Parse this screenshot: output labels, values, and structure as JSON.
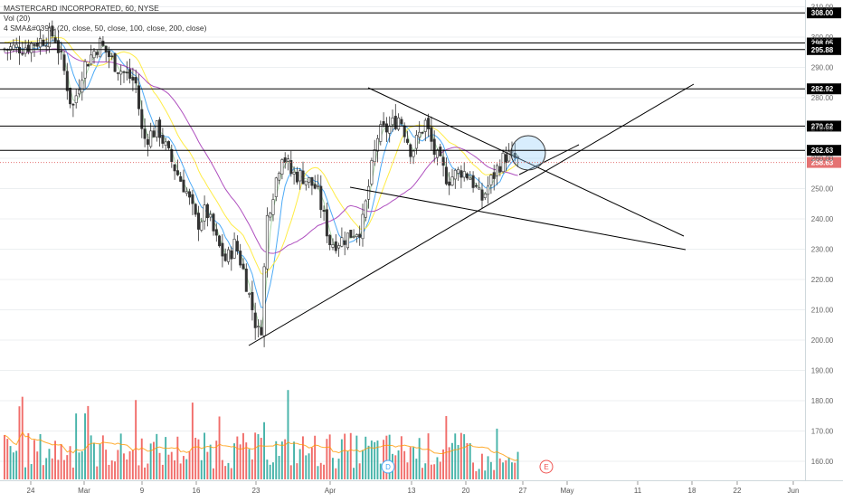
{
  "legend": {
    "line1": "MASTERCARD INCORPORATED, 60, NYSE",
    "line2": "Vol (20)",
    "line3": "4 SMA&#039;s (20, close, 50, close, 100, close, 200, close)"
  },
  "chart_data": {
    "type": "candlestick",
    "title": "MASTERCARD INCORPORATED, 60, NYSE",
    "x_tick_labels": [
      "24",
      "Mar",
      "9",
      "16",
      "23",
      "Apr",
      "13",
      "20",
      "27",
      "May",
      "11",
      "18",
      "22",
      "Jun"
    ],
    "y_tick_labels": [
      160,
      170,
      180,
      190,
      200,
      210,
      220,
      230,
      240,
      250,
      260,
      270,
      280,
      290,
      300,
      310
    ],
    "ylim": [
      155,
      313
    ],
    "grid": true,
    "price_levels": [
      {
        "label": "308.00",
        "value": 308.0
      },
      {
        "label": "298.05",
        "value": 298.05
      },
      {
        "label": "295.88",
        "value": 295.88
      },
      {
        "label": "282.92",
        "value": 282.92
      },
      {
        "label": "270.62",
        "value": 270.62
      },
      {
        "label": "262.63",
        "value": 262.63
      },
      {
        "label": "258.63",
        "value": 258.63,
        "current": true
      }
    ],
    "volume_label": "Vol (20)",
    "moving_averages": [
      "SMA 20",
      "SMA 50",
      "SMA 100",
      "SMA 200"
    ],
    "event_markers": [
      {
        "label": "D",
        "x": "Apr 10"
      },
      {
        "label": "E",
        "x": "Apr 29"
      }
    ],
    "colors": {
      "up": "#26a69a",
      "down": "#ef5350",
      "candle_body": "#333333",
      "sma20": "#a5d6a7",
      "sma50": "#42a5f5",
      "sma100": "#ffeb3b",
      "sma200": "#ab47bc",
      "current_price": "#e57373",
      "circle": "#90caf9"
    }
  }
}
